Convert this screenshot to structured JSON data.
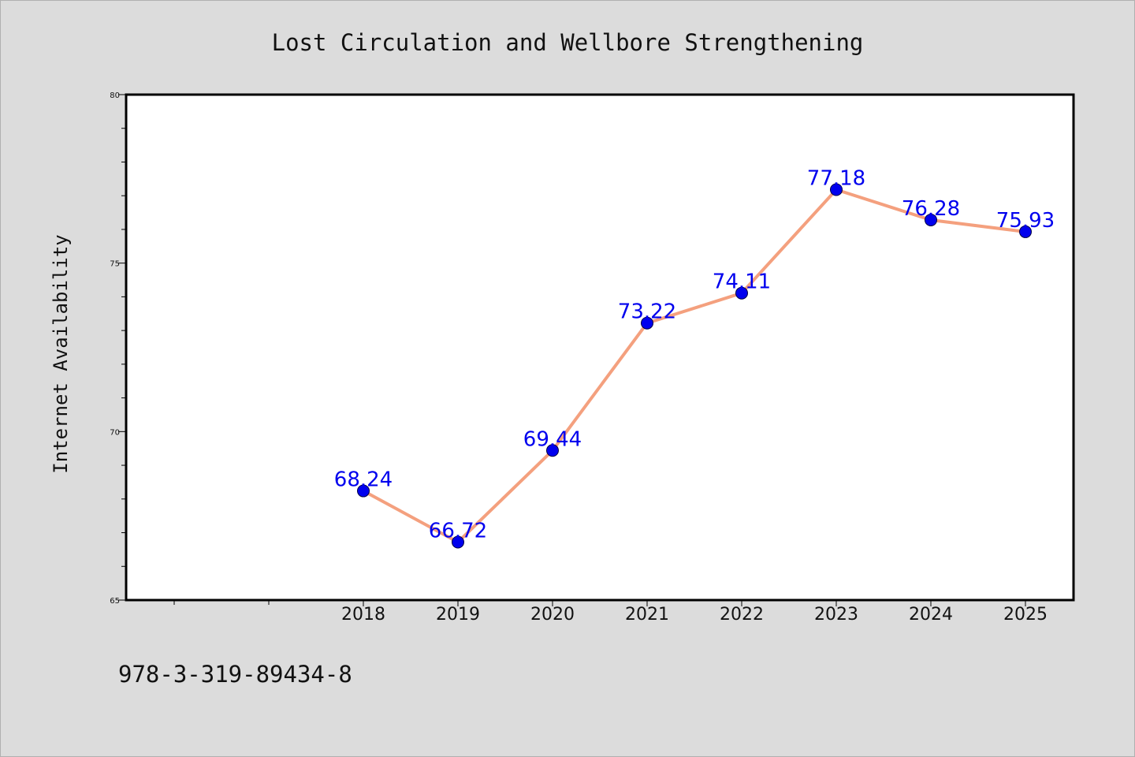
{
  "chart_data": {
    "type": "line",
    "title": "Lost Circulation and Wellbore Strengthening",
    "xlabel": "",
    "ylabel": "Internet Availability",
    "categories": [
      "2018",
      "2019",
      "2020",
      "2021",
      "2022",
      "2023",
      "2024",
      "2025"
    ],
    "series": [
      {
        "values": [
          68.24,
          66.72,
          69.44,
          73.22,
          74.11,
          77.18,
          76.28,
          75.93
        ],
        "labels": [
          "68.24",
          "66.72",
          "69.44",
          "73.22",
          "74.11",
          "77.18",
          "76.28",
          "75.93"
        ]
      }
    ],
    "ylim": [
      65,
      80
    ],
    "yticks": [
      "65",
      "70",
      "75",
      "80"
    ],
    "grid": false,
    "legend": "none",
    "colors": {
      "line": "#f4a07e",
      "marker": "#0000ee",
      "data_label": "#0000ee",
      "plot_background": "#ffffff",
      "page_background": "#dcdcdc"
    }
  },
  "footer": {
    "isbn": "978-3-319-89434-8"
  }
}
